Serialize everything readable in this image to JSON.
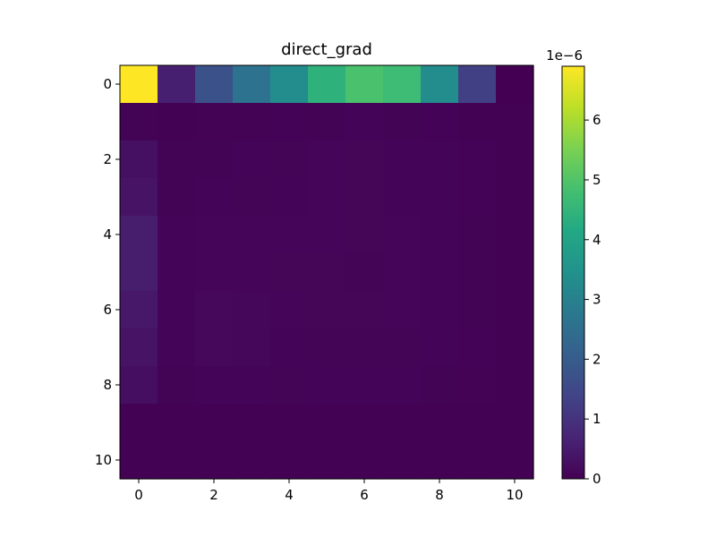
{
  "chart_data": {
    "type": "heatmap",
    "title": "direct_grad",
    "xlabel": "",
    "ylabel": "",
    "rows": [
      0,
      1,
      2,
      3,
      4,
      5,
      6,
      7,
      8,
      9,
      10
    ],
    "cols": [
      0,
      1,
      2,
      3,
      4,
      5,
      6,
      7,
      8,
      9,
      10
    ],
    "x_ticks": [
      "0",
      "2",
      "4",
      "6",
      "8",
      "10"
    ],
    "y_ticks": [
      "0",
      "2",
      "4",
      "6",
      "8",
      "10"
    ],
    "colormap": "viridis",
    "colorbar": {
      "vmin": 0,
      "vmax": 6.9,
      "ticks": [
        "0",
        "1",
        "2",
        "3",
        "4",
        "5",
        "6"
      ],
      "offset_label": "1e−6"
    },
    "values": [
      [
        6.9,
        0.6,
        1.7,
        2.6,
        3.3,
        4.4,
        4.9,
        4.7,
        3.3,
        1.3,
        0.0
      ],
      [
        0.05,
        0.02,
        0.03,
        0.03,
        0.04,
        0.05,
        0.06,
        0.05,
        0.04,
        0.02,
        0.01
      ],
      [
        0.3,
        0.05,
        0.05,
        0.06,
        0.07,
        0.1,
        0.09,
        0.08,
        0.06,
        0.04,
        0.02
      ],
      [
        0.35,
        0.05,
        0.06,
        0.07,
        0.08,
        0.1,
        0.09,
        0.08,
        0.06,
        0.04,
        0.02
      ],
      [
        0.55,
        0.06,
        0.1,
        0.1,
        0.1,
        0.1,
        0.09,
        0.1,
        0.08,
        0.05,
        0.02
      ],
      [
        0.55,
        0.06,
        0.1,
        0.1,
        0.09,
        0.09,
        0.07,
        0.1,
        0.08,
        0.05,
        0.02
      ],
      [
        0.45,
        0.06,
        0.14,
        0.12,
        0.1,
        0.09,
        0.09,
        0.1,
        0.08,
        0.05,
        0.02
      ],
      [
        0.35,
        0.06,
        0.14,
        0.12,
        0.08,
        0.07,
        0.07,
        0.07,
        0.06,
        0.04,
        0.02
      ],
      [
        0.25,
        0.05,
        0.08,
        0.08,
        0.07,
        0.06,
        0.06,
        0.06,
        0.05,
        0.03,
        0.02
      ],
      [
        0.02,
        0.02,
        0.02,
        0.02,
        0.02,
        0.02,
        0.02,
        0.02,
        0.02,
        0.02,
        0.01
      ],
      [
        0.02,
        0.02,
        0.02,
        0.02,
        0.02,
        0.02,
        0.02,
        0.02,
        0.02,
        0.02,
        0.01
      ]
    ]
  }
}
